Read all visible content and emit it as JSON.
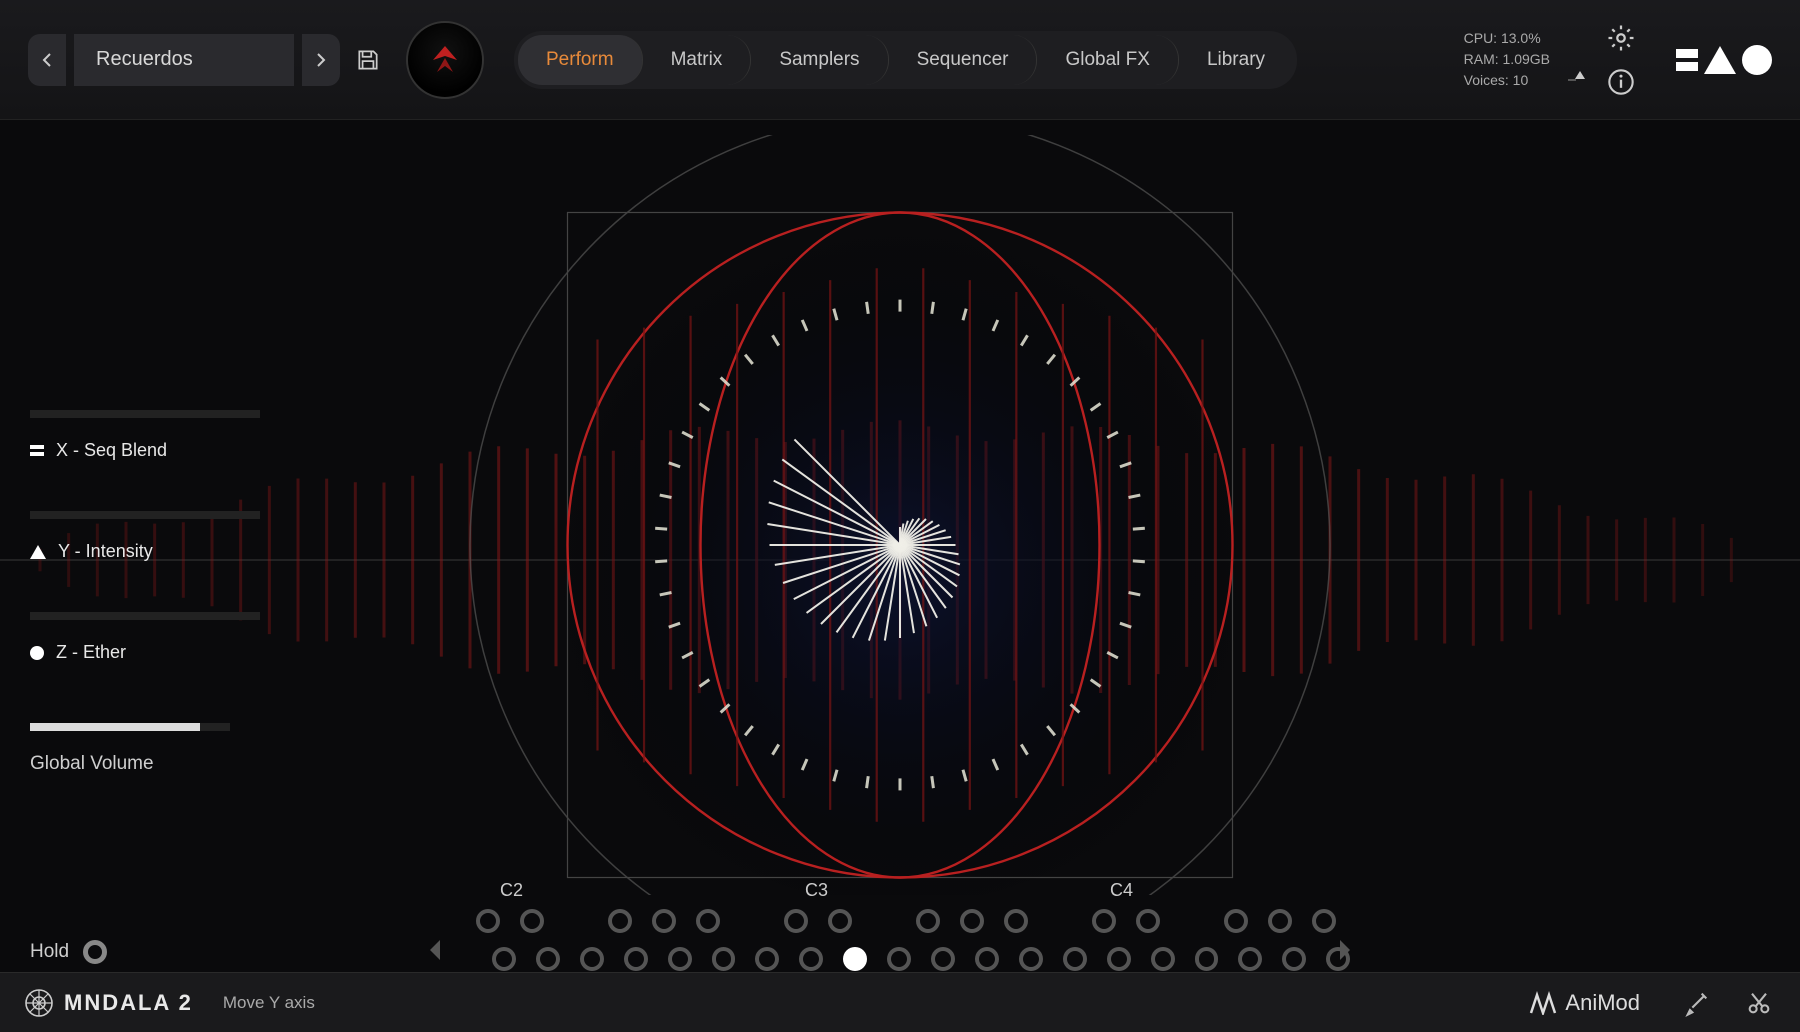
{
  "preset": {
    "name": "Recuerdos"
  },
  "tabs": {
    "items": [
      "Perform",
      "Matrix",
      "Samplers",
      "Sequencer",
      "Global FX",
      "Library"
    ],
    "active_index": 0,
    "active_color": "#e88a3a"
  },
  "stats": {
    "cpu": "CPU: 13.0%",
    "ram": "RAM: 1.09GB",
    "voices": "Voices: 10"
  },
  "meters": {
    "top_fill_pct": 50,
    "midi_triangle_pos_pct": 85
  },
  "params": {
    "x": {
      "label": "X - Seq Blend",
      "fill_pct": 0
    },
    "y": {
      "label": "Y - Intensity",
      "fill_pct": 0
    },
    "z": {
      "label": "Z - Ether",
      "fill_pct": 0
    },
    "global_volume": {
      "label": "Global Volume",
      "fill_pct": 85
    }
  },
  "hold": {
    "label": "Hold",
    "on": false
  },
  "notes": {
    "labels": [
      "C2",
      "C3",
      "C4"
    ],
    "black_row_pattern": [
      1,
      1,
      0,
      1,
      1,
      1,
      0,
      1,
      1,
      0,
      1,
      1,
      1,
      0,
      1,
      1,
      0,
      1,
      1,
      1
    ],
    "white_row_count": 20,
    "active_white_index": 8
  },
  "footer": {
    "brand": "MNDALA 2",
    "hint": "Move Y axis",
    "animod": "AniMod"
  },
  "visualizer": {
    "outer_circle_color": "#555",
    "red_color": "#b82020",
    "tick_color": "#e8e8d8",
    "spiral_color": "#f0efe8",
    "square_size": 665,
    "square_border": "#444",
    "background_glow": "#0c1230",
    "red_bar_count": 44,
    "tick_count": 46,
    "spiral_lines": 36
  },
  "colors": {
    "bg": "#0a0a0c",
    "panel": "#1a1a1d",
    "text": "#cfcfcf",
    "text_bright": "#e8e8e8",
    "accent": "#e88a3a"
  }
}
